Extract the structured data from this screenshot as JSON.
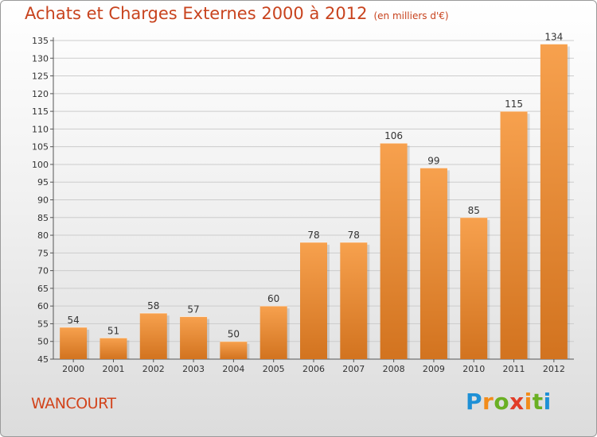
{
  "title": "Achats et Charges Externes 2000 à 2012",
  "unit": "(en milliers d'€)",
  "location": "WANCOURT",
  "logo": "Proxiti",
  "colors": {
    "bar_top": "#f7a14e",
    "bar_bottom": "#d2731f",
    "title": "#c8431e",
    "grid": "#cccccc"
  },
  "chart_data": {
    "type": "bar",
    "categories": [
      "2000",
      "2001",
      "2002",
      "2003",
      "2004",
      "2005",
      "2006",
      "2007",
      "2008",
      "2009",
      "2010",
      "2011",
      "2012"
    ],
    "values": [
      54,
      51,
      58,
      57,
      50,
      60,
      78,
      78,
      106,
      99,
      85,
      115,
      134
    ],
    "ylim": [
      45,
      135
    ],
    "yticks": [
      45,
      50,
      55,
      60,
      65,
      70,
      75,
      80,
      85,
      90,
      95,
      100,
      105,
      110,
      115,
      120,
      125,
      130,
      135
    ],
    "grid": true,
    "legend": "none"
  }
}
